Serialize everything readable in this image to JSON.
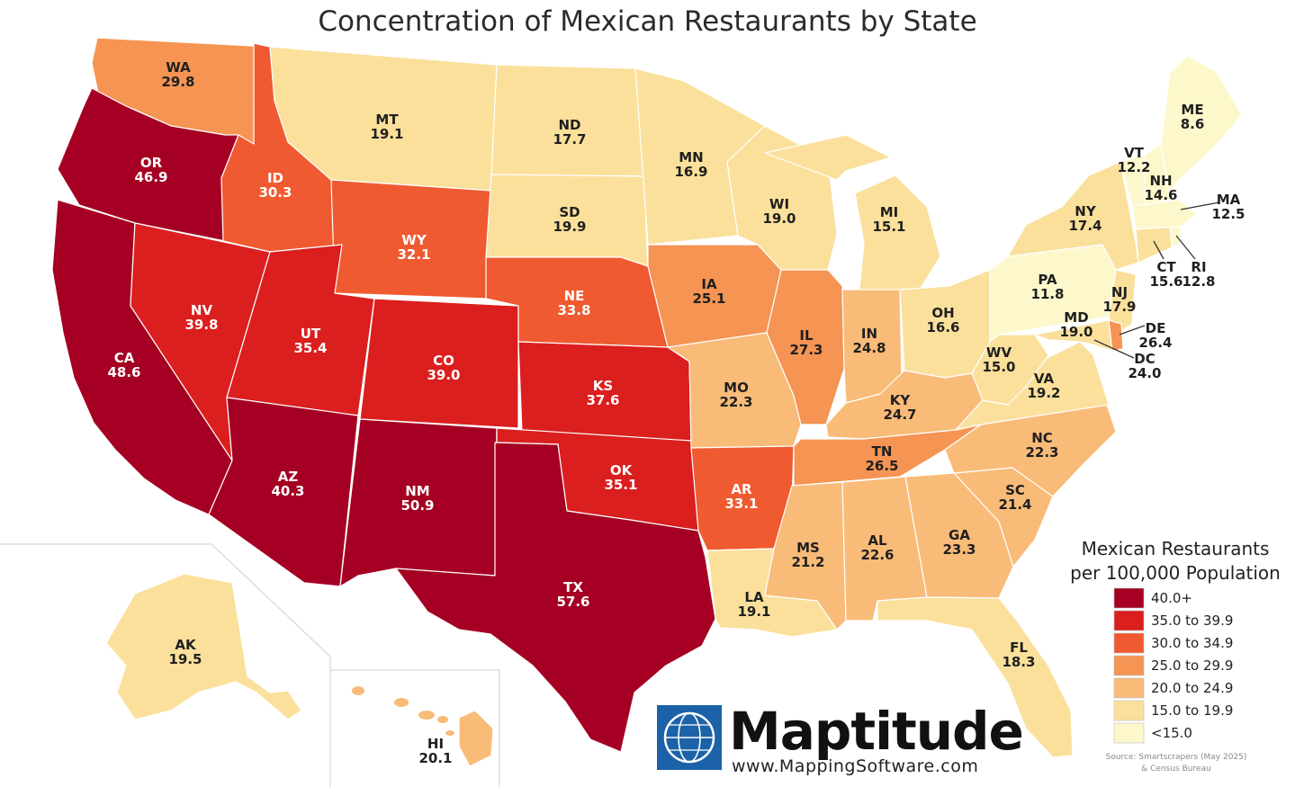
{
  "title": "Concentration of Mexican Restaurants by State",
  "legend": {
    "title_line1": "Mexican Restaurants",
    "title_line2": "per 100,000 Population",
    "bins": [
      {
        "label": "40.0+",
        "color": "#a50023"
      },
      {
        "label": "35.0 to 39.9",
        "color": "#db1e1e"
      },
      {
        "label": "30.0 to 34.9",
        "color": "#f05a30"
      },
      {
        "label": "25.0 to 29.9",
        "color": "#f59453"
      },
      {
        "label": "20.0 to 24.9",
        "color": "#f9bb78"
      },
      {
        "label": "15.0 to 19.9",
        "color": "#fbe09c"
      },
      {
        "label": "<15.0",
        "color": "#fdf8cc"
      }
    ]
  },
  "states": [
    {
      "abbr": "WA",
      "value": "29.8",
      "bin": 3
    },
    {
      "abbr": "OR",
      "value": "46.9",
      "bin": 0
    },
    {
      "abbr": "CA",
      "value": "48.6",
      "bin": 0
    },
    {
      "abbr": "ID",
      "value": "30.3",
      "bin": 2
    },
    {
      "abbr": "NV",
      "value": "39.8",
      "bin": 1
    },
    {
      "abbr": "MT",
      "value": "19.1",
      "bin": 5
    },
    {
      "abbr": "WY",
      "value": "32.1",
      "bin": 2
    },
    {
      "abbr": "UT",
      "value": "35.4",
      "bin": 1
    },
    {
      "abbr": "AZ",
      "value": "40.3",
      "bin": 0
    },
    {
      "abbr": "CO",
      "value": "39.0",
      "bin": 1
    },
    {
      "abbr": "NM",
      "value": "50.9",
      "bin": 0
    },
    {
      "abbr": "ND",
      "value": "17.7",
      "bin": 5
    },
    {
      "abbr": "SD",
      "value": "19.9",
      "bin": 5
    },
    {
      "abbr": "NE",
      "value": "33.8",
      "bin": 2
    },
    {
      "abbr": "KS",
      "value": "37.6",
      "bin": 1
    },
    {
      "abbr": "OK",
      "value": "35.1",
      "bin": 1
    },
    {
      "abbr": "TX",
      "value": "57.6",
      "bin": 0
    },
    {
      "abbr": "MN",
      "value": "16.9",
      "bin": 5
    },
    {
      "abbr": "IA",
      "value": "25.1",
      "bin": 3
    },
    {
      "abbr": "MO",
      "value": "22.3",
      "bin": 4
    },
    {
      "abbr": "AR",
      "value": "33.1",
      "bin": 2
    },
    {
      "abbr": "LA",
      "value": "19.1",
      "bin": 5
    },
    {
      "abbr": "WI",
      "value": "19.0",
      "bin": 5
    },
    {
      "abbr": "IL",
      "value": "27.3",
      "bin": 3
    },
    {
      "abbr": "MI",
      "value": "15.1",
      "bin": 5
    },
    {
      "abbr": "IN",
      "value": "24.8",
      "bin": 4
    },
    {
      "abbr": "OH",
      "value": "16.6",
      "bin": 5
    },
    {
      "abbr": "KY",
      "value": "24.7",
      "bin": 4
    },
    {
      "abbr": "TN",
      "value": "26.5",
      "bin": 3
    },
    {
      "abbr": "MS",
      "value": "21.2",
      "bin": 4
    },
    {
      "abbr": "AL",
      "value": "22.6",
      "bin": 4
    },
    {
      "abbr": "GA",
      "value": "23.3",
      "bin": 4
    },
    {
      "abbr": "FL",
      "value": "18.3",
      "bin": 5
    },
    {
      "abbr": "SC",
      "value": "21.4",
      "bin": 4
    },
    {
      "abbr": "NC",
      "value": "22.3",
      "bin": 4
    },
    {
      "abbr": "VA",
      "value": "19.2",
      "bin": 5
    },
    {
      "abbr": "WV",
      "value": "15.0",
      "bin": 5
    },
    {
      "abbr": "PA",
      "value": "11.8",
      "bin": 6
    },
    {
      "abbr": "NY",
      "value": "17.4",
      "bin": 5
    },
    {
      "abbr": "NJ",
      "value": "17.9",
      "bin": 5
    },
    {
      "abbr": "MD",
      "value": "19.0",
      "bin": 5
    },
    {
      "abbr": "DE",
      "value": "26.4",
      "bin": 3
    },
    {
      "abbr": "DC",
      "value": "24.0",
      "bin": 4
    },
    {
      "abbr": "CT",
      "value": "15.6",
      "bin": 5
    },
    {
      "abbr": "RI",
      "value": "12.8",
      "bin": 6
    },
    {
      "abbr": "MA",
      "value": "12.5",
      "bin": 6
    },
    {
      "abbr": "VT",
      "value": "12.2",
      "bin": 6
    },
    {
      "abbr": "NH",
      "value": "14.6",
      "bin": 6
    },
    {
      "abbr": "ME",
      "value": "8.6",
      "bin": 6
    },
    {
      "abbr": "AK",
      "value": "19.5",
      "bin": 5
    },
    {
      "abbr": "HI",
      "value": "20.1",
      "bin": 4
    }
  ],
  "branding": {
    "name": "Maptitude",
    "url": "www.MappingSoftware.com"
  },
  "source": {
    "line1": "Source: Smartscrapers (May 2025)",
    "line2": "& Census Bureau"
  }
}
